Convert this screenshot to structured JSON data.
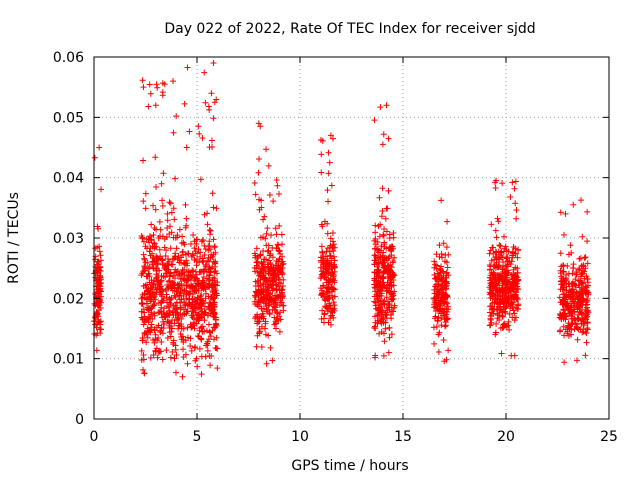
{
  "chart_data": {
    "type": "scatter",
    "title": "Day 022 of 2022, Rate Of TEC Index for receiver sjdd",
    "xlabel": "GPS time / hours",
    "ylabel": "ROTI / TECUs",
    "xlim": [
      0,
      25
    ],
    "ylim": [
      0,
      0.06
    ],
    "xticks": [
      "0",
      "5",
      "10",
      "15",
      "20",
      "25"
    ],
    "yticks": [
      "0",
      "0.01",
      "0.02",
      "0.03",
      "0.04",
      "0.05",
      "0.06"
    ],
    "grid": true,
    "marker": "+",
    "color": "#ff0000",
    "clusters": [
      {
        "x_start": 0.0,
        "x_end": 0.35,
        "y_min": 0.01,
        "y_max": 0.046,
        "count": 120,
        "center": 0.021
      },
      {
        "x_start": 2.3,
        "x_end": 6.0,
        "y_min": 0.007,
        "y_max": 0.059,
        "count": 900,
        "center": 0.021
      },
      {
        "x_start": 7.8,
        "x_end": 9.2,
        "y_min": 0.009,
        "y_max": 0.049,
        "count": 350,
        "center": 0.022
      },
      {
        "x_start": 11.0,
        "x_end": 11.7,
        "y_min": 0.013,
        "y_max": 0.047,
        "count": 180,
        "center": 0.023
      },
      {
        "x_start": 13.6,
        "x_end": 14.6,
        "y_min": 0.009,
        "y_max": 0.052,
        "count": 300,
        "center": 0.023
      },
      {
        "x_start": 16.5,
        "x_end": 17.2,
        "y_min": 0.009,
        "y_max": 0.037,
        "count": 180,
        "center": 0.021
      },
      {
        "x_start": 19.2,
        "x_end": 20.6,
        "y_min": 0.01,
        "y_max": 0.04,
        "count": 400,
        "center": 0.022
      },
      {
        "x_start": 22.6,
        "x_end": 24.0,
        "y_min": 0.008,
        "y_max": 0.039,
        "count": 320,
        "center": 0.02
      }
    ],
    "outliers": [
      {
        "x": 2.4,
        "y": 0.055
      },
      {
        "x": 3.0,
        "y": 0.052
      },
      {
        "x": 5.8,
        "y": 0.059
      },
      {
        "x": 5.7,
        "y": 0.054
      },
      {
        "x": 14.2,
        "y": 0.052
      },
      {
        "x": 0.25,
        "y": 0.045
      },
      {
        "x": 4.5,
        "y": 0.045
      },
      {
        "x": 8.0,
        "y": 0.049
      },
      {
        "x": 11.5,
        "y": 0.047
      }
    ]
  }
}
